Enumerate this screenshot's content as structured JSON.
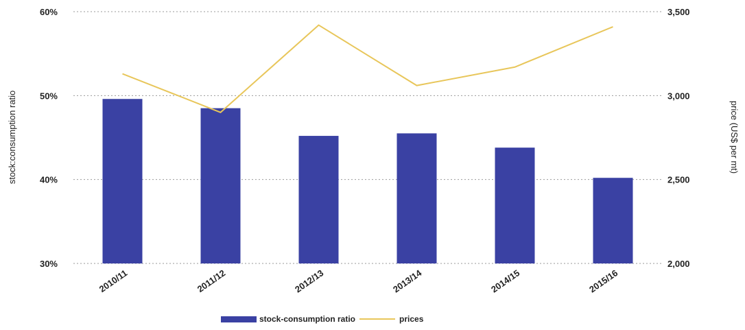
{
  "chart_data": {
    "type": "bar+line",
    "categories": [
      "2010/11",
      "2011/12",
      "2012/13",
      "2013/14",
      "2014/15",
      "2015/16"
    ],
    "series": [
      {
        "name": "stock-consumption ratio",
        "type": "bar",
        "axis": "left",
        "color": "#3a41a3",
        "values": [
          49.6,
          48.5,
          45.2,
          45.5,
          43.8,
          40.2
        ]
      },
      {
        "name": "prices",
        "type": "line",
        "axis": "right",
        "color": "#e8c65a",
        "values": [
          3130,
          2900,
          3420,
          3060,
          3170,
          3410
        ]
      }
    ],
    "left_axis": {
      "label": "stock:consumption ratio",
      "lim": [
        30,
        60
      ],
      "ticks": [
        "30%",
        "40%",
        "50%",
        "60%"
      ],
      "tick_values": [
        30,
        40,
        50,
        60
      ]
    },
    "right_axis": {
      "label": "price (US$ per mt)",
      "lim": [
        2000,
        3500
      ],
      "ticks": [
        "2,000",
        "2,500",
        "3,000",
        "3,500"
      ],
      "tick_values": [
        2000,
        2500,
        3000,
        3500
      ]
    },
    "grid": true,
    "grid_style": "dotted",
    "legend_position": "bottom-center",
    "legend": [
      "stock-consumption ratio",
      "prices"
    ]
  }
}
